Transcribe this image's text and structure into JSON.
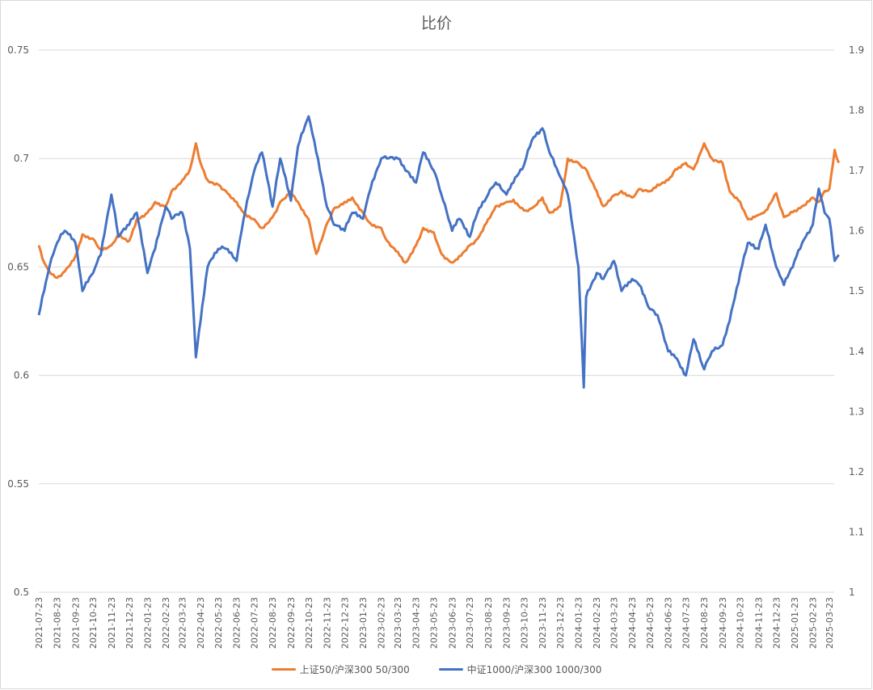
{
  "chart_data": {
    "type": "line",
    "title": "比价",
    "y_left": {
      "ylim": [
        0.5,
        0.75
      ],
      "ticks": [
        "0.5",
        "0.55",
        "0.6",
        "0.65",
        "0.7",
        "0.75"
      ]
    },
    "y_right": {
      "ylim": [
        1.0,
        1.9
      ],
      "ticks": [
        "1",
        "1.1",
        "1.2",
        "1.3",
        "1.4",
        "1.5",
        "1.6",
        "1.7",
        "1.8",
        "1.9"
      ]
    },
    "grid": true,
    "legend_position": "bottom",
    "x_tick_labels": [
      "2021-07-23",
      "2021-08-23",
      "2021-09-23",
      "2021-10-23",
      "2021-11-23",
      "2021-12-23",
      "2022-01-23",
      "2022-02-23",
      "2022-03-23",
      "2022-04-23",
      "2022-05-23",
      "2022-06-23",
      "2022-07-23",
      "2022-08-23",
      "2022-09-23",
      "2022-10-23",
      "2022-11-23",
      "2022-12-23",
      "2023-01-23",
      "2023-02-23",
      "2023-03-23",
      "2023-04-23",
      "2023-05-23",
      "2023-06-23",
      "2023-07-23",
      "2023-08-23",
      "2023-09-23",
      "2023-10-23",
      "2023-11-23",
      "2023-12-23",
      "2024-01-23",
      "2024-02-23",
      "2024-03-23",
      "2024-04-23",
      "2024-05-23",
      "2024-06-23",
      "2024-07-23",
      "2024-08-23",
      "2024-09-23",
      "2024-10-23",
      "2024-11-23",
      "2024-12-23",
      "2025-01-23",
      "2025-02-23",
      "2025-03-23"
    ],
    "series": [
      {
        "name": "上证50/沪深300 50/300",
        "axis": "left",
        "color": "#ED7D31",
        "x": [
          "2021-07-23",
          "2021-08-01",
          "2021-08-10",
          "2021-08-23",
          "2021-09-05",
          "2021-09-23",
          "2021-10-05",
          "2021-10-23",
          "2021-11-05",
          "2021-11-23",
          "2021-12-05",
          "2021-12-23",
          "2022-01-05",
          "2022-01-23",
          "2022-02-05",
          "2022-02-23",
          "2022-03-05",
          "2022-03-23",
          "2022-04-05",
          "2022-04-15",
          "2022-04-23",
          "2022-05-05",
          "2022-05-23",
          "2022-06-05",
          "2022-06-23",
          "2022-07-05",
          "2022-07-23",
          "2022-08-05",
          "2022-08-23",
          "2022-09-05",
          "2022-09-23",
          "2022-10-05",
          "2022-10-23",
          "2022-11-05",
          "2022-11-23",
          "2022-12-05",
          "2022-12-23",
          "2023-01-05",
          "2023-01-23",
          "2023-02-05",
          "2023-02-23",
          "2023-03-05",
          "2023-03-23",
          "2023-04-05",
          "2023-04-23",
          "2023-05-05",
          "2023-05-23",
          "2023-06-05",
          "2023-06-23",
          "2023-07-05",
          "2023-07-23",
          "2023-08-05",
          "2023-08-23",
          "2023-09-05",
          "2023-09-23",
          "2023-10-05",
          "2023-10-23",
          "2023-11-05",
          "2023-11-23",
          "2023-12-05",
          "2023-12-23",
          "2024-01-05",
          "2024-01-23",
          "2024-02-05",
          "2024-02-23",
          "2024-03-05",
          "2024-03-23",
          "2024-04-05",
          "2024-04-23",
          "2024-05-05",
          "2024-05-23",
          "2024-06-05",
          "2024-06-23",
          "2024-07-05",
          "2024-07-23",
          "2024-08-05",
          "2024-08-23",
          "2024-09-05",
          "2024-09-23",
          "2024-10-05",
          "2024-10-23",
          "2024-11-05",
          "2024-11-23",
          "2024-12-05",
          "2024-12-23",
          "2025-01-05",
          "2025-01-23",
          "2025-02-05",
          "2025-02-23",
          "2025-03-05",
          "2025-03-15",
          "2025-03-23",
          "2025-04-01",
          "2025-04-08"
        ],
        "values": [
          0.66,
          0.652,
          0.648,
          0.645,
          0.648,
          0.655,
          0.665,
          0.663,
          0.658,
          0.66,
          0.665,
          0.662,
          0.672,
          0.675,
          0.68,
          0.678,
          0.685,
          0.69,
          0.695,
          0.707,
          0.698,
          0.69,
          0.688,
          0.685,
          0.68,
          0.675,
          0.672,
          0.668,
          0.673,
          0.68,
          0.685,
          0.68,
          0.672,
          0.656,
          0.67,
          0.677,
          0.68,
          0.682,
          0.675,
          0.67,
          0.668,
          0.662,
          0.657,
          0.652,
          0.66,
          0.668,
          0.666,
          0.656,
          0.652,
          0.655,
          0.66,
          0.663,
          0.672,
          0.678,
          0.68,
          0.681,
          0.676,
          0.677,
          0.682,
          0.675,
          0.678,
          0.7,
          0.698,
          0.695,
          0.685,
          0.678,
          0.683,
          0.685,
          0.682,
          0.686,
          0.685,
          0.688,
          0.69,
          0.695,
          0.698,
          0.695,
          0.707,
          0.7,
          0.698,
          0.685,
          0.68,
          0.672,
          0.674,
          0.676,
          0.684,
          0.673,
          0.676,
          0.678,
          0.682,
          0.68,
          0.685,
          0.686,
          0.704,
          0.698
        ]
      },
      {
        "name": "中证1000/沪深300 1000/300",
        "axis": "right",
        "color": "#4472C4",
        "x": [
          "2021-07-23",
          "2021-08-01",
          "2021-08-10",
          "2021-08-23",
          "2021-09-05",
          "2021-09-23",
          "2021-10-05",
          "2021-10-23",
          "2021-11-05",
          "2021-11-23",
          "2021-12-05",
          "2021-12-23",
          "2022-01-05",
          "2022-01-23",
          "2022-02-05",
          "2022-02-23",
          "2022-03-05",
          "2022-03-23",
          "2022-04-05",
          "2022-04-15",
          "2022-04-23",
          "2022-05-05",
          "2022-05-23",
          "2022-06-05",
          "2022-06-23",
          "2022-07-05",
          "2022-07-23",
          "2022-08-05",
          "2022-08-23",
          "2022-09-05",
          "2022-09-23",
          "2022-10-05",
          "2022-10-23",
          "2022-11-05",
          "2022-11-23",
          "2022-12-05",
          "2022-12-23",
          "2023-01-05",
          "2023-01-23",
          "2023-02-05",
          "2023-02-23",
          "2023-03-05",
          "2023-03-23",
          "2023-04-05",
          "2023-04-23",
          "2023-05-05",
          "2023-05-23",
          "2023-06-05",
          "2023-06-23",
          "2023-07-05",
          "2023-07-23",
          "2023-08-05",
          "2023-08-23",
          "2023-09-05",
          "2023-09-23",
          "2023-10-05",
          "2023-10-23",
          "2023-11-05",
          "2023-11-23",
          "2023-12-05",
          "2023-12-23",
          "2024-01-05",
          "2024-01-23",
          "2024-02-01",
          "2024-02-05",
          "2024-02-23",
          "2024-03-05",
          "2024-03-23",
          "2024-04-05",
          "2024-04-23",
          "2024-05-05",
          "2024-05-23",
          "2024-06-05",
          "2024-06-23",
          "2024-07-05",
          "2024-07-23",
          "2024-08-05",
          "2024-08-23",
          "2024-09-05",
          "2024-09-23",
          "2024-10-05",
          "2024-10-23",
          "2024-11-05",
          "2024-11-23",
          "2024-12-05",
          "2024-12-23",
          "2025-01-05",
          "2025-01-23",
          "2025-02-05",
          "2025-02-23",
          "2025-03-05",
          "2025-03-15",
          "2025-03-23",
          "2025-04-01",
          "2025-04-08"
        ],
        "values": [
          1.46,
          1.5,
          1.54,
          1.58,
          1.6,
          1.58,
          1.5,
          1.53,
          1.56,
          1.66,
          1.59,
          1.61,
          1.63,
          1.53,
          1.57,
          1.64,
          1.62,
          1.63,
          1.57,
          1.39,
          1.45,
          1.54,
          1.57,
          1.57,
          1.55,
          1.62,
          1.7,
          1.73,
          1.64,
          1.72,
          1.65,
          1.74,
          1.79,
          1.73,
          1.64,
          1.61,
          1.6,
          1.63,
          1.62,
          1.67,
          1.72,
          1.72,
          1.72,
          1.7,
          1.68,
          1.73,
          1.7,
          1.66,
          1.6,
          1.62,
          1.59,
          1.63,
          1.66,
          1.68,
          1.66,
          1.68,
          1.71,
          1.75,
          1.77,
          1.73,
          1.69,
          1.66,
          1.54,
          1.34,
          1.49,
          1.53,
          1.52,
          1.55,
          1.5,
          1.52,
          1.51,
          1.47,
          1.46,
          1.4,
          1.39,
          1.36,
          1.42,
          1.37,
          1.4,
          1.41,
          1.45,
          1.53,
          1.58,
          1.57,
          1.61,
          1.54,
          1.51,
          1.55,
          1.58,
          1.61,
          1.67,
          1.63,
          1.62,
          1.55,
          1.56
        ]
      }
    ]
  }
}
